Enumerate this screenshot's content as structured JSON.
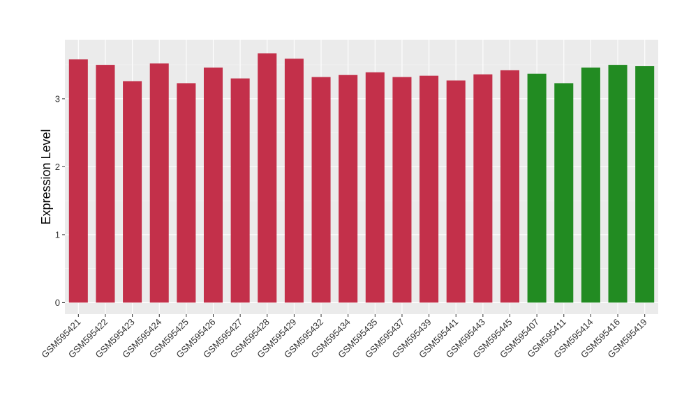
{
  "chart_data": {
    "type": "bar",
    "title": "",
    "xlabel": "",
    "ylabel": "Expression Level",
    "ylim": [
      -0.17,
      3.87
    ],
    "yticks": [
      0,
      1,
      2,
      3
    ],
    "grid": true,
    "categories": [
      "GSM595421",
      "GSM595422",
      "GSM595423",
      "GSM595424",
      "GSM595425",
      "GSM595426",
      "GSM595427",
      "GSM595428",
      "GSM595429",
      "GSM595432",
      "GSM595434",
      "GSM595435",
      "GSM595437",
      "GSM595439",
      "GSM595441",
      "GSM595443",
      "GSM595445",
      "GSM595407",
      "GSM595411",
      "GSM595414",
      "GSM595416",
      "GSM595419"
    ],
    "values": [
      3.58,
      3.5,
      3.26,
      3.52,
      3.23,
      3.46,
      3.3,
      3.67,
      3.59,
      3.32,
      3.35,
      3.39,
      3.32,
      3.34,
      3.27,
      3.36,
      3.42,
      3.37,
      3.23,
      3.46,
      3.5,
      3.48
    ],
    "groups": [
      "red",
      "red",
      "red",
      "red",
      "red",
      "red",
      "red",
      "red",
      "red",
      "red",
      "red",
      "red",
      "red",
      "red",
      "red",
      "red",
      "red",
      "green",
      "green",
      "green",
      "green",
      "green"
    ],
    "colors": {
      "red": "#c3304a",
      "green": "#228b22",
      "panel": "#ebebeb",
      "grid_major": "#ffffff",
      "grid_minor": "#f5f5f5"
    }
  }
}
